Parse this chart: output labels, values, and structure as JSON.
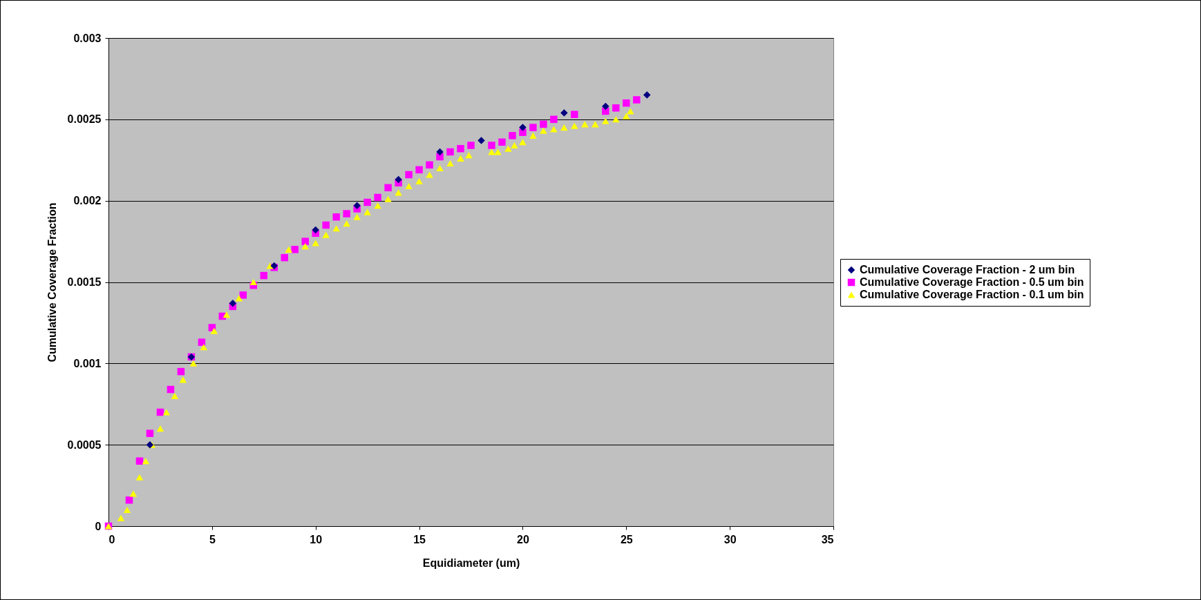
{
  "chart_data": {
    "type": "scatter",
    "xlabel": "Equidiameter (um)",
    "ylabel": "Cumulative Coverage Fraction",
    "xlim": [
      0,
      35
    ],
    "xticks": [
      0,
      5,
      10,
      15,
      20,
      25,
      30,
      35
    ],
    "ylim": [
      0,
      0.003
    ],
    "yticks": [
      0,
      0.0005,
      0.001,
      0.0015,
      0.002,
      0.0025,
      0.003
    ],
    "grid": "y",
    "legend": "right",
    "series": [
      {
        "name": "Cumulative Coverage Fraction - 2 um bin",
        "color": "#000080",
        "marker": "diamond",
        "x": [
          2,
          4,
          6,
          8,
          10,
          12,
          14,
          16,
          18,
          20,
          22,
          24,
          26
        ],
        "values": [
          0.0005,
          0.00104,
          0.00137,
          0.0016,
          0.00182,
          0.00197,
          0.00213,
          0.0023,
          0.00237,
          0.00245,
          0.00254,
          0.00258,
          0.00265
        ]
      },
      {
        "name": "Cumulative Coverage Fraction - 0.5 um bin",
        "color": "#ff00ff",
        "marker": "square",
        "x": [
          0,
          1,
          1.5,
          2,
          2.5,
          3,
          3.5,
          4,
          4.5,
          5,
          5.5,
          6,
          6.5,
          7,
          7.5,
          8,
          8.5,
          9,
          9.5,
          10,
          10.5,
          11,
          11.5,
          12,
          12.5,
          13,
          13.5,
          14,
          14.5,
          15,
          15.5,
          16,
          16.5,
          17,
          17.5,
          18.5,
          19,
          19.5,
          20,
          20.5,
          21,
          21.5,
          22.5,
          24,
          24.5,
          25,
          25.5
        ],
        "values": [
          0,
          0.00016,
          0.0004,
          0.00057,
          0.0007,
          0.00084,
          0.00095,
          0.00104,
          0.00113,
          0.00122,
          0.00129,
          0.00135,
          0.00142,
          0.00148,
          0.00154,
          0.00159,
          0.00165,
          0.0017,
          0.00175,
          0.0018,
          0.00185,
          0.0019,
          0.00192,
          0.00195,
          0.00199,
          0.00202,
          0.00208,
          0.00211,
          0.00216,
          0.00219,
          0.00222,
          0.00227,
          0.0023,
          0.00232,
          0.00234,
          0.00234,
          0.00236,
          0.0024,
          0.00242,
          0.00245,
          0.00247,
          0.0025,
          0.00253,
          0.00255,
          0.00257,
          0.0026,
          0.00262
        ]
      },
      {
        "name": "Cumulative Coverage Fraction - 0.1 um bin",
        "color": "#ffff00",
        "marker": "triangle",
        "x": [
          0,
          0.6,
          0.9,
          1.2,
          1.5,
          1.8,
          2.1,
          2.5,
          2.8,
          3.2,
          3.6,
          4.1,
          4.6,
          5.1,
          5.7,
          6.3,
          7,
          7.8,
          8.7,
          9.5,
          10,
          10.5,
          11,
          11.5,
          12,
          12.5,
          13,
          13.5,
          14,
          14.5,
          15,
          15.5,
          16,
          16.5,
          17,
          17.4,
          18.5,
          18.8,
          19.3,
          19.6,
          20,
          20.5,
          21,
          21.5,
          22,
          22.5,
          23,
          23.5,
          24,
          24.5,
          25,
          25.2
        ],
        "values": [
          0,
          5e-05,
          0.0001,
          0.0002,
          0.0003,
          0.0004,
          0.0005,
          0.0006,
          0.0007,
          0.0008,
          0.0009,
          0.001,
          0.0011,
          0.0012,
          0.0013,
          0.0014,
          0.0015,
          0.0016,
          0.0017,
          0.00172,
          0.00174,
          0.00179,
          0.00183,
          0.00186,
          0.0019,
          0.00193,
          0.00197,
          0.00201,
          0.00205,
          0.00209,
          0.00212,
          0.00216,
          0.0022,
          0.00223,
          0.00226,
          0.00228,
          0.0023,
          0.0023,
          0.00232,
          0.00234,
          0.00236,
          0.0024,
          0.00243,
          0.00244,
          0.00245,
          0.00246,
          0.00247,
          0.00247,
          0.00249,
          0.0025,
          0.00252,
          0.00255
        ]
      }
    ]
  }
}
